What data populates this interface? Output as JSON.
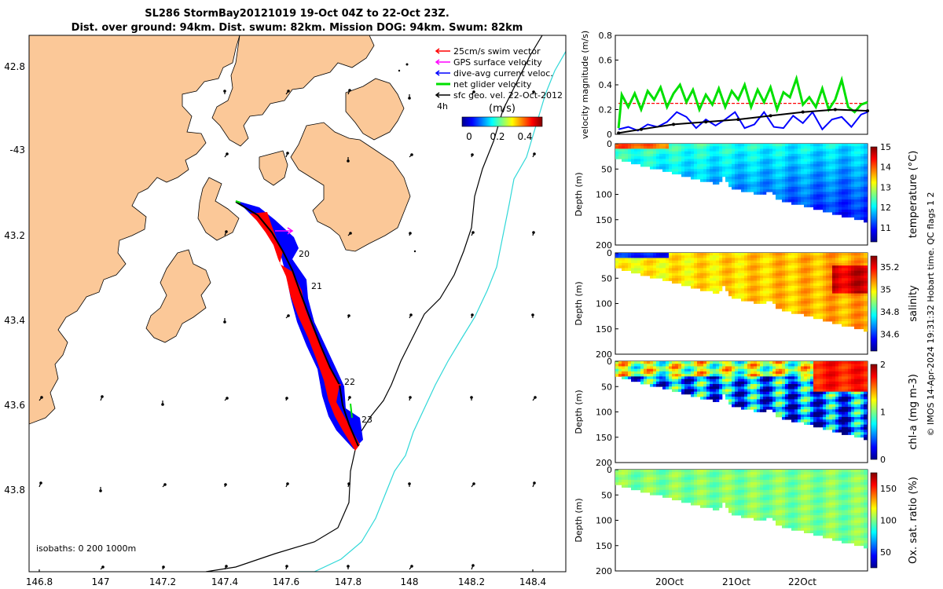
{
  "title": {
    "line1": "SL286 StormBay20121019 19-Oct 04Z to 22-Oct 23Z.",
    "line2": "Dist. over ground: 94km. Dist. swum: 82km. Mission DOG: 94km. Swum: 82km"
  },
  "colors": {
    "land": "#fbc898",
    "swim_vector": "#ff0000",
    "gps_velocity": "#ff00ff",
    "dive_current": "#0000ff",
    "net_velocity": "#00e000",
    "sfc_geo": "#000000",
    "isobath_200": "#000000",
    "isobath_1000": "#30d8d8"
  },
  "map": {
    "legend": [
      {
        "label": "25cm/s swim vector",
        "color": "#ff0000"
      },
      {
        "label": "GPS surface velocity",
        "color": "#ff00ff"
      },
      {
        "label": "dive-avg current veloc.",
        "color": "#0000ff"
      },
      {
        "label": "net glider velocity",
        "color": "#00e000"
      },
      {
        "label": "sfc geo. vel. 22-Oct-2012",
        "color": "#000000"
      }
    ],
    "time_step_label": "4h",
    "colorbar_unit": "(m/s)",
    "colorbar_ticks": [
      "0",
      "0.2",
      "0.4"
    ],
    "lat_ticks": [
      "42.8",
      "-43",
      "43.2",
      "43.4",
      "43.6",
      "43.8"
    ],
    "lon_ticks": [
      "146.8",
      "147",
      "147.2",
      "147.4",
      "147.6",
      "147.8",
      "148",
      "148.2",
      "148.4"
    ],
    "day_labels": [
      "20",
      "21",
      "22",
      "23"
    ],
    "isobath_label": "isobaths: 0   200  1000m"
  },
  "chart_data": [
    {
      "type": "line",
      "name": "velocity magnitude",
      "ylabel": "velocity magnitude (m/s)",
      "ylim": [
        0,
        0.8
      ],
      "yticks": [
        "0",
        "0.2",
        "0.4",
        "0.6",
        "0.8"
      ],
      "xlim": [
        19.1,
        23.0
      ],
      "series": [
        {
          "name": "25cm/s swim vector",
          "color": "#ff0000",
          "x": [
            19.15,
            23.0
          ],
          "y": [
            0.25,
            0.25
          ]
        },
        {
          "name": "net glider velocity",
          "color": "#00e000",
          "x": [
            19.15,
            19.2,
            19.3,
            19.4,
            19.5,
            19.6,
            19.7,
            19.8,
            19.9,
            20.0,
            20.1,
            20.2,
            20.3,
            20.4,
            20.5,
            20.6,
            20.7,
            20.8,
            20.9,
            21.0,
            21.1,
            21.2,
            21.3,
            21.4,
            21.5,
            21.6,
            21.7,
            21.8,
            21.9,
            22.0,
            22.1,
            22.2,
            22.3,
            22.4,
            22.5,
            22.6,
            22.7,
            22.8,
            22.9,
            23.0
          ],
          "y": [
            0.05,
            0.32,
            0.22,
            0.33,
            0.2,
            0.35,
            0.28,
            0.38,
            0.22,
            0.33,
            0.4,
            0.26,
            0.36,
            0.2,
            0.32,
            0.24,
            0.37,
            0.22,
            0.35,
            0.28,
            0.4,
            0.22,
            0.36,
            0.26,
            0.38,
            0.2,
            0.34,
            0.3,
            0.45,
            0.24,
            0.3,
            0.22,
            0.37,
            0.2,
            0.28,
            0.44,
            0.22,
            0.18,
            0.24,
            0.26
          ]
        },
        {
          "name": "dive-avg current veloc.",
          "color": "#0000ff",
          "x": [
            19.15,
            19.3,
            19.45,
            19.6,
            19.75,
            19.9,
            20.05,
            20.2,
            20.35,
            20.5,
            20.65,
            20.8,
            20.95,
            21.1,
            21.25,
            21.4,
            21.55,
            21.7,
            21.85,
            22.0,
            22.15,
            22.3,
            22.45,
            22.6,
            22.75,
            22.9,
            23.0
          ],
          "y": [
            0.04,
            0.06,
            0.03,
            0.08,
            0.06,
            0.1,
            0.18,
            0.14,
            0.05,
            0.12,
            0.07,
            0.12,
            0.18,
            0.05,
            0.08,
            0.18,
            0.06,
            0.05,
            0.15,
            0.09,
            0.18,
            0.04,
            0.12,
            0.14,
            0.06,
            0.16,
            0.18
          ]
        },
        {
          "name": "sfc geo. vel.",
          "color": "#000000",
          "x": [
            19.15,
            19.5,
            20.0,
            20.5,
            21.0,
            21.5,
            22.0,
            22.5,
            23.0
          ],
          "y": [
            0.01,
            0.04,
            0.08,
            0.1,
            0.12,
            0.15,
            0.18,
            0.2,
            0.19
          ]
        }
      ]
    },
    {
      "type": "heatmap",
      "name": "temperature",
      "colorbar_label": "temperature (°C)",
      "ylabel": "Depth (m)",
      "ylim": [
        200,
        0
      ],
      "yticks": [
        "0",
        "50",
        "100",
        "150",
        "200"
      ],
      "clim": [
        10.3,
        15
      ],
      "cticks": [
        "15",
        "14",
        "13",
        "12",
        "11"
      ]
    },
    {
      "type": "heatmap",
      "name": "salinity",
      "colorbar_label": "salinity",
      "ylabel": "Depth (m)",
      "ylim": [
        200,
        0
      ],
      "yticks": [
        "0",
        "50",
        "100",
        "150",
        "200"
      ],
      "clim": [
        34.45,
        35.3
      ],
      "cticks": [
        "35.2",
        "35",
        "34.8",
        "34.6"
      ]
    },
    {
      "type": "heatmap",
      "name": "chl-a",
      "colorbar_label": "chl-a (mg m-3)",
      "ylabel": "Depth (m)",
      "ylim": [
        200,
        0
      ],
      "yticks": [
        "0",
        "50",
        "100",
        "150",
        "200"
      ],
      "clim": [
        0,
        2
      ],
      "cticks": [
        "2",
        "1",
        "0"
      ]
    },
    {
      "type": "heatmap",
      "name": "oxygen",
      "colorbar_label": "Ox. sat. ratio (%)",
      "ylabel": "Depth (m)",
      "ylim": [
        200,
        0
      ],
      "yticks": [
        "0",
        "50",
        "100",
        "150",
        "200"
      ],
      "clim": [
        25,
        175
      ],
      "cticks": [
        "150",
        "100",
        "50"
      ]
    },
    {
      "type": "axis",
      "name": "time",
      "xticks": [
        "20Oct",
        "21Oct",
        "22Oct"
      ]
    }
  ],
  "side_credit": "© IMOS 14-Apr-2024 19:31:32 Hobart time. QC flags 1  2"
}
